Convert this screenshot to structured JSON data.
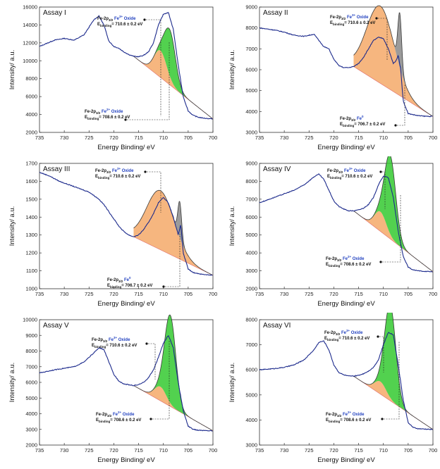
{
  "figure": {
    "colors": {
      "spectrum": "#1c2a8c",
      "fit": "#3a3a3a",
      "oxide_fe3": "#f5a968",
      "oxide_fe2": "#34c930",
      "fe0": "#8a8a8a",
      "background": "#e06a6a"
    }
  },
  "chart_data": [
    {
      "type": "line",
      "title": "Assay I",
      "xlabel": "Energy Binding/ eV",
      "ylabel": "Intensity/ a.u.",
      "xlim": [
        735,
        700
      ],
      "ylim": [
        2000,
        16000
      ],
      "xticks": [
        "735",
        "730",
        "725",
        "720",
        "715",
        "710",
        "705",
        "700"
      ],
      "yticks": [
        "2000",
        "4000",
        "6000",
        "8000",
        "10000",
        "12000",
        "14000",
        "16000"
      ],
      "series": [
        {
          "role": "spectrum",
          "x": [
            735,
            732,
            730,
            728,
            726,
            724,
            723,
            722,
            721,
            720,
            719,
            718,
            717,
            716,
            715,
            714,
            713,
            712,
            711,
            710,
            709,
            708,
            707,
            706,
            705,
            704,
            703,
            702,
            701,
            700
          ],
          "y": [
            11600,
            12300,
            12500,
            12300,
            12900,
            14600,
            15000,
            14000,
            12200,
            11600,
            11400,
            11000,
            10700,
            10500,
            10450,
            10600,
            11000,
            12000,
            14000,
            15200,
            15400,
            13500,
            9500,
            6000,
            4400,
            3900,
            3700,
            3600,
            3550,
            3500
          ]
        },
        {
          "role": "component",
          "name": "Fe-2p3/2 Fe3+ Oxide",
          "center": 710.6,
          "amplitude": 3000,
          "fwhm": 3.0
        },
        {
          "role": "component",
          "name": "Fe-2p3/2 Fe2+ Oxide",
          "center": 708.6,
          "amplitude": 5200,
          "fwhm": 2.6
        }
      ],
      "annotations": [
        {
          "label": "Fe-2p",
          "sub": "3/2",
          "ion": "Fe",
          "sup": "3+",
          "suffix": "Oxide",
          "eb": "E",
          "ebsub": "binding",
          "value": "= 710.6 ± 0.2 eV"
        },
        {
          "label": "Fe-2p",
          "sub": "3/2",
          "ion": "Fe",
          "sup": "2+",
          "suffix": "Oxide",
          "eb": "E",
          "ebsub": "binding",
          "value": "= 708.6 ± 0.2 eV"
        }
      ]
    },
    {
      "type": "line",
      "title": "Assay II",
      "xlabel": "Energy Binding/ eV",
      "ylabel": "Intensity/ a.u.",
      "xlim": [
        735,
        700
      ],
      "ylim": [
        3000,
        9000
      ],
      "xticks": [
        "735",
        "730",
        "725",
        "720",
        "715",
        "710",
        "705",
        "700"
      ],
      "yticks": [
        "3000",
        "4000",
        "5000",
        "6000",
        "7000",
        "8000",
        "9000"
      ],
      "series": [
        {
          "role": "spectrum",
          "x": [
            735,
            732,
            730,
            728,
            726,
            724,
            722,
            721,
            720,
            719,
            718,
            717,
            716,
            715,
            714,
            713,
            712,
            711,
            710,
            709,
            708,
            707.5,
            707,
            706.5,
            706,
            705,
            704,
            703,
            702,
            701,
            700
          ],
          "y": [
            8000,
            7900,
            7800,
            7650,
            7600,
            7700,
            7100,
            7000,
            6500,
            6200,
            6100,
            6100,
            6150,
            6300,
            6600,
            7000,
            7400,
            7550,
            7500,
            7000,
            6300,
            6400,
            6700,
            6000,
            4500,
            3900,
            3850,
            3800,
            3780,
            3770,
            3760
          ]
        },
        {
          "role": "component",
          "name": "Fe-2p3/2 Fe3+ Oxide",
          "center": 710.6,
          "amplitude": 3700,
          "fwhm": 6.5
        },
        {
          "role": "component",
          "name": "Fe-2p3/2 Fe0",
          "center": 706.7,
          "amplitude": 2600,
          "fwhm": 0.9
        }
      ],
      "annotations": [
        {
          "label": "Fe-2p",
          "sub": "3/2",
          "ion": "Fe",
          "sup": "3+",
          "suffix": "Oxide",
          "eb": "E",
          "ebsub": "binding",
          "value": "= 710.6 ± 0.2 eV"
        },
        {
          "label": "Fe-2p",
          "sub": "3/2",
          "ion": "Fe",
          "sup": "0",
          "suffix": "",
          "eb": "E",
          "ebsub": "binding",
          "value": "= 706.7 ± 0.2 eV"
        }
      ]
    },
    {
      "type": "line",
      "title": "Assay III",
      "xlabel": "Energy Binding/ eV",
      "ylabel": "Intensity/ a.u.",
      "xlim": [
        735,
        700
      ],
      "ylim": [
        1000,
        1700
      ],
      "xticks": [
        "735",
        "730",
        "725",
        "720",
        "715",
        "710",
        "705",
        "700"
      ],
      "yticks": [
        "1000",
        "1100",
        "1200",
        "1300",
        "1400",
        "1500",
        "1600",
        "1700"
      ],
      "series": [
        {
          "role": "spectrum",
          "x": [
            735,
            733,
            731,
            729,
            727,
            725,
            723,
            722,
            721,
            720,
            719,
            718,
            717,
            716,
            715,
            714,
            713,
            712,
            711,
            710,
            709,
            708,
            707,
            706.5,
            706,
            705,
            704,
            703,
            702,
            701,
            700
          ],
          "y": [
            1650,
            1630,
            1600,
            1580,
            1560,
            1540,
            1500,
            1470,
            1430,
            1390,
            1350,
            1320,
            1300,
            1290,
            1300,
            1330,
            1370,
            1420,
            1480,
            1510,
            1480,
            1400,
            1300,
            1360,
            1200,
            1110,
            1090,
            1085,
            1080,
            1078,
            1075
          ]
        },
        {
          "role": "component",
          "name": "Fe-2p3/2 Fe3+ Oxide",
          "center": 710.6,
          "amplitude": 330,
          "fwhm": 6.5
        },
        {
          "role": "component",
          "name": "Fe-2p3/2 Fe0",
          "center": 706.7,
          "amplitude": 200,
          "fwhm": 0.9
        }
      ],
      "annotations": [
        {
          "label": "Fe-2p",
          "sub": "3/2",
          "ion": "Fe",
          "sup": "3+",
          "suffix": "Oxide",
          "eb": "E",
          "ebsub": "binding",
          "value": "= 710.6 ± 0.2 eV"
        },
        {
          "label": "Fe-2p",
          "sub": "3/2",
          "ion": "Fe",
          "sup": "0",
          "suffix": "",
          "eb": "E",
          "ebsub": "binding",
          "value": "= 706.7 ± 0.2 eV"
        }
      ]
    },
    {
      "type": "line",
      "title": "Assay IV",
      "xlabel": "Energy Binding/ eV",
      "ylabel": "Intensity/ a.u.",
      "xlim": [
        735,
        700
      ],
      "ylim": [
        2000,
        9000
      ],
      "xticks": [
        "735",
        "730",
        "725",
        "720",
        "715",
        "710",
        "705",
        "700"
      ],
      "yticks": [
        "2000",
        "3000",
        "4000",
        "5000",
        "6000",
        "7000",
        "8000",
        "9000"
      ],
      "series": [
        {
          "role": "spectrum",
          "x": [
            735,
            732,
            730,
            728,
            726,
            724,
            723,
            722,
            721,
            720,
            719,
            718,
            717,
            716,
            715,
            714,
            713,
            712,
            711,
            710,
            709,
            708,
            707,
            706,
            705,
            704,
            703,
            702,
            701,
            700
          ],
          "y": [
            6800,
            7100,
            7300,
            7500,
            7800,
            8250,
            8400,
            8100,
            7500,
            6900,
            6600,
            6450,
            6350,
            6350,
            6400,
            6500,
            6700,
            7100,
            7800,
            8300,
            8200,
            7100,
            5200,
            3800,
            3200,
            3050,
            3000,
            2980,
            2960,
            2950
          ]
        },
        {
          "role": "component",
          "name": "Fe-2p3/2 Fe3+ Oxide",
          "center": 710.6,
          "amplitude": 1100,
          "fwhm": 2.8
        },
        {
          "role": "component",
          "name": "Fe-2p3/2 Fe2+ Oxide",
          "center": 708.6,
          "amplitude": 4400,
          "fwhm": 2.6
        }
      ],
      "annotations": [
        {
          "label": "Fe-2p",
          "sub": "3/2",
          "ion": "Fe",
          "sup": "3+",
          "suffix": "Oxide",
          "eb": "E",
          "ebsub": "binding",
          "value": "= 710.6 ± 0.2 eV"
        },
        {
          "label": "Fe-2p",
          "sub": "3/2",
          "ion": "Fe",
          "sup": "2+",
          "suffix": "Oxide",
          "eb": "E",
          "ebsub": "binding",
          "value": "= 708.6 ± 0.2 eV"
        }
      ]
    },
    {
      "type": "line",
      "title": "Assay V",
      "xlabel": "Energy Binding/ eV",
      "ylabel": "Intensity/ a.u.",
      "xlim": [
        735,
        700
      ],
      "ylim": [
        2000,
        10000
      ],
      "xticks": [
        "735",
        "730",
        "725",
        "720",
        "715",
        "710",
        "705",
        "700"
      ],
      "yticks": [
        "2000",
        "3000",
        "4000",
        "5000",
        "6000",
        "7000",
        "8000",
        "9000",
        "10000"
      ],
      "series": [
        {
          "role": "spectrum",
          "x": [
            735,
            732,
            730,
            728,
            726,
            724,
            723,
            722,
            721,
            720,
            719,
            718,
            717,
            716,
            715,
            714,
            713,
            712,
            711,
            710,
            709,
            708,
            707,
            706,
            705,
            704,
            703,
            702,
            701,
            700
          ],
          "y": [
            6600,
            6800,
            6900,
            7000,
            7300,
            7900,
            8200,
            8100,
            7300,
            6500,
            6100,
            5900,
            5850,
            5800,
            5850,
            6000,
            6300,
            6800,
            7600,
            8500,
            9000,
            8200,
            6000,
            4200,
            3200,
            3000,
            2950,
            2930,
            2920,
            2910
          ]
        },
        {
          "role": "component",
          "name": "Fe-2p3/2 Fe3+ Oxide",
          "center": 710.6,
          "amplitude": 900,
          "fwhm": 2.8
        },
        {
          "role": "component",
          "name": "Fe-2p3/2 Fe2+ Oxide",
          "center": 708.6,
          "amplitude": 5600,
          "fwhm": 2.6
        }
      ],
      "annotations": [
        {
          "label": "Fe-2p",
          "sub": "3/2",
          "ion": "Fe",
          "sup": "3+",
          "suffix": "Oxide",
          "eb": "E",
          "ebsub": "binding",
          "value": "= 710.6 ± 0.2 eV"
        },
        {
          "label": "Fe-2p",
          "sub": "3/2",
          "ion": "Fe",
          "sup": "2+",
          "suffix": "Oxide",
          "eb": "E",
          "ebsub": "binding",
          "value": "= 708.6 ± 0.2 eV"
        }
      ]
    },
    {
      "type": "line",
      "title": "Assay VI",
      "xlabel": "Energy Binding/ eV",
      "ylabel": "Intensity/ a.u.",
      "xlim": [
        735,
        700
      ],
      "ylim": [
        3000,
        8000
      ],
      "xticks": [
        "735",
        "730",
        "725",
        "720",
        "715",
        "710",
        "705",
        "700"
      ],
      "yticks": [
        "3000",
        "4000",
        "5000",
        "6000",
        "7000",
        "8000"
      ],
      "series": [
        {
          "role": "spectrum",
          "x": [
            735,
            732,
            730,
            728,
            726,
            724,
            723,
            722,
            721,
            720,
            719,
            718,
            717,
            716,
            715,
            714,
            713,
            712,
            711,
            710,
            709,
            708,
            707,
            706,
            705,
            704,
            703,
            702,
            701,
            700
          ],
          "y": [
            6000,
            6050,
            6100,
            6200,
            6400,
            6800,
            7100,
            7150,
            6800,
            6200,
            5900,
            5800,
            5750,
            5750,
            5780,
            5850,
            5950,
            6100,
            6400,
            7000,
            7500,
            7400,
            6200,
            4800,
            3900,
            3700,
            3650,
            3640,
            3630,
            3620
          ]
        },
        {
          "role": "component",
          "name": "Fe-2p3/2 Fe3+ Oxide",
          "center": 710.6,
          "amplitude": 500,
          "fwhm": 2.8
        },
        {
          "role": "component",
          "name": "Fe-2p3/2 Fe2+ Oxide",
          "center": 708.6,
          "amplitude": 3700,
          "fwhm": 2.6
        }
      ],
      "annotations": [
        {
          "label": "Fe-2p",
          "sub": "3/2",
          "ion": "Fe",
          "sup": "3+",
          "suffix": "Oxide",
          "eb": "E",
          "ebsub": "binding",
          "value": "= 710.6 ± 0.2 eV"
        },
        {
          "label": "Fe-2p",
          "sub": "3/2",
          "ion": "Fe",
          "sup": "2+",
          "suffix": "Oxide",
          "eb": "E",
          "ebsub": "binding",
          "value": "= 708.6 ± 0.2 eV"
        }
      ]
    }
  ]
}
